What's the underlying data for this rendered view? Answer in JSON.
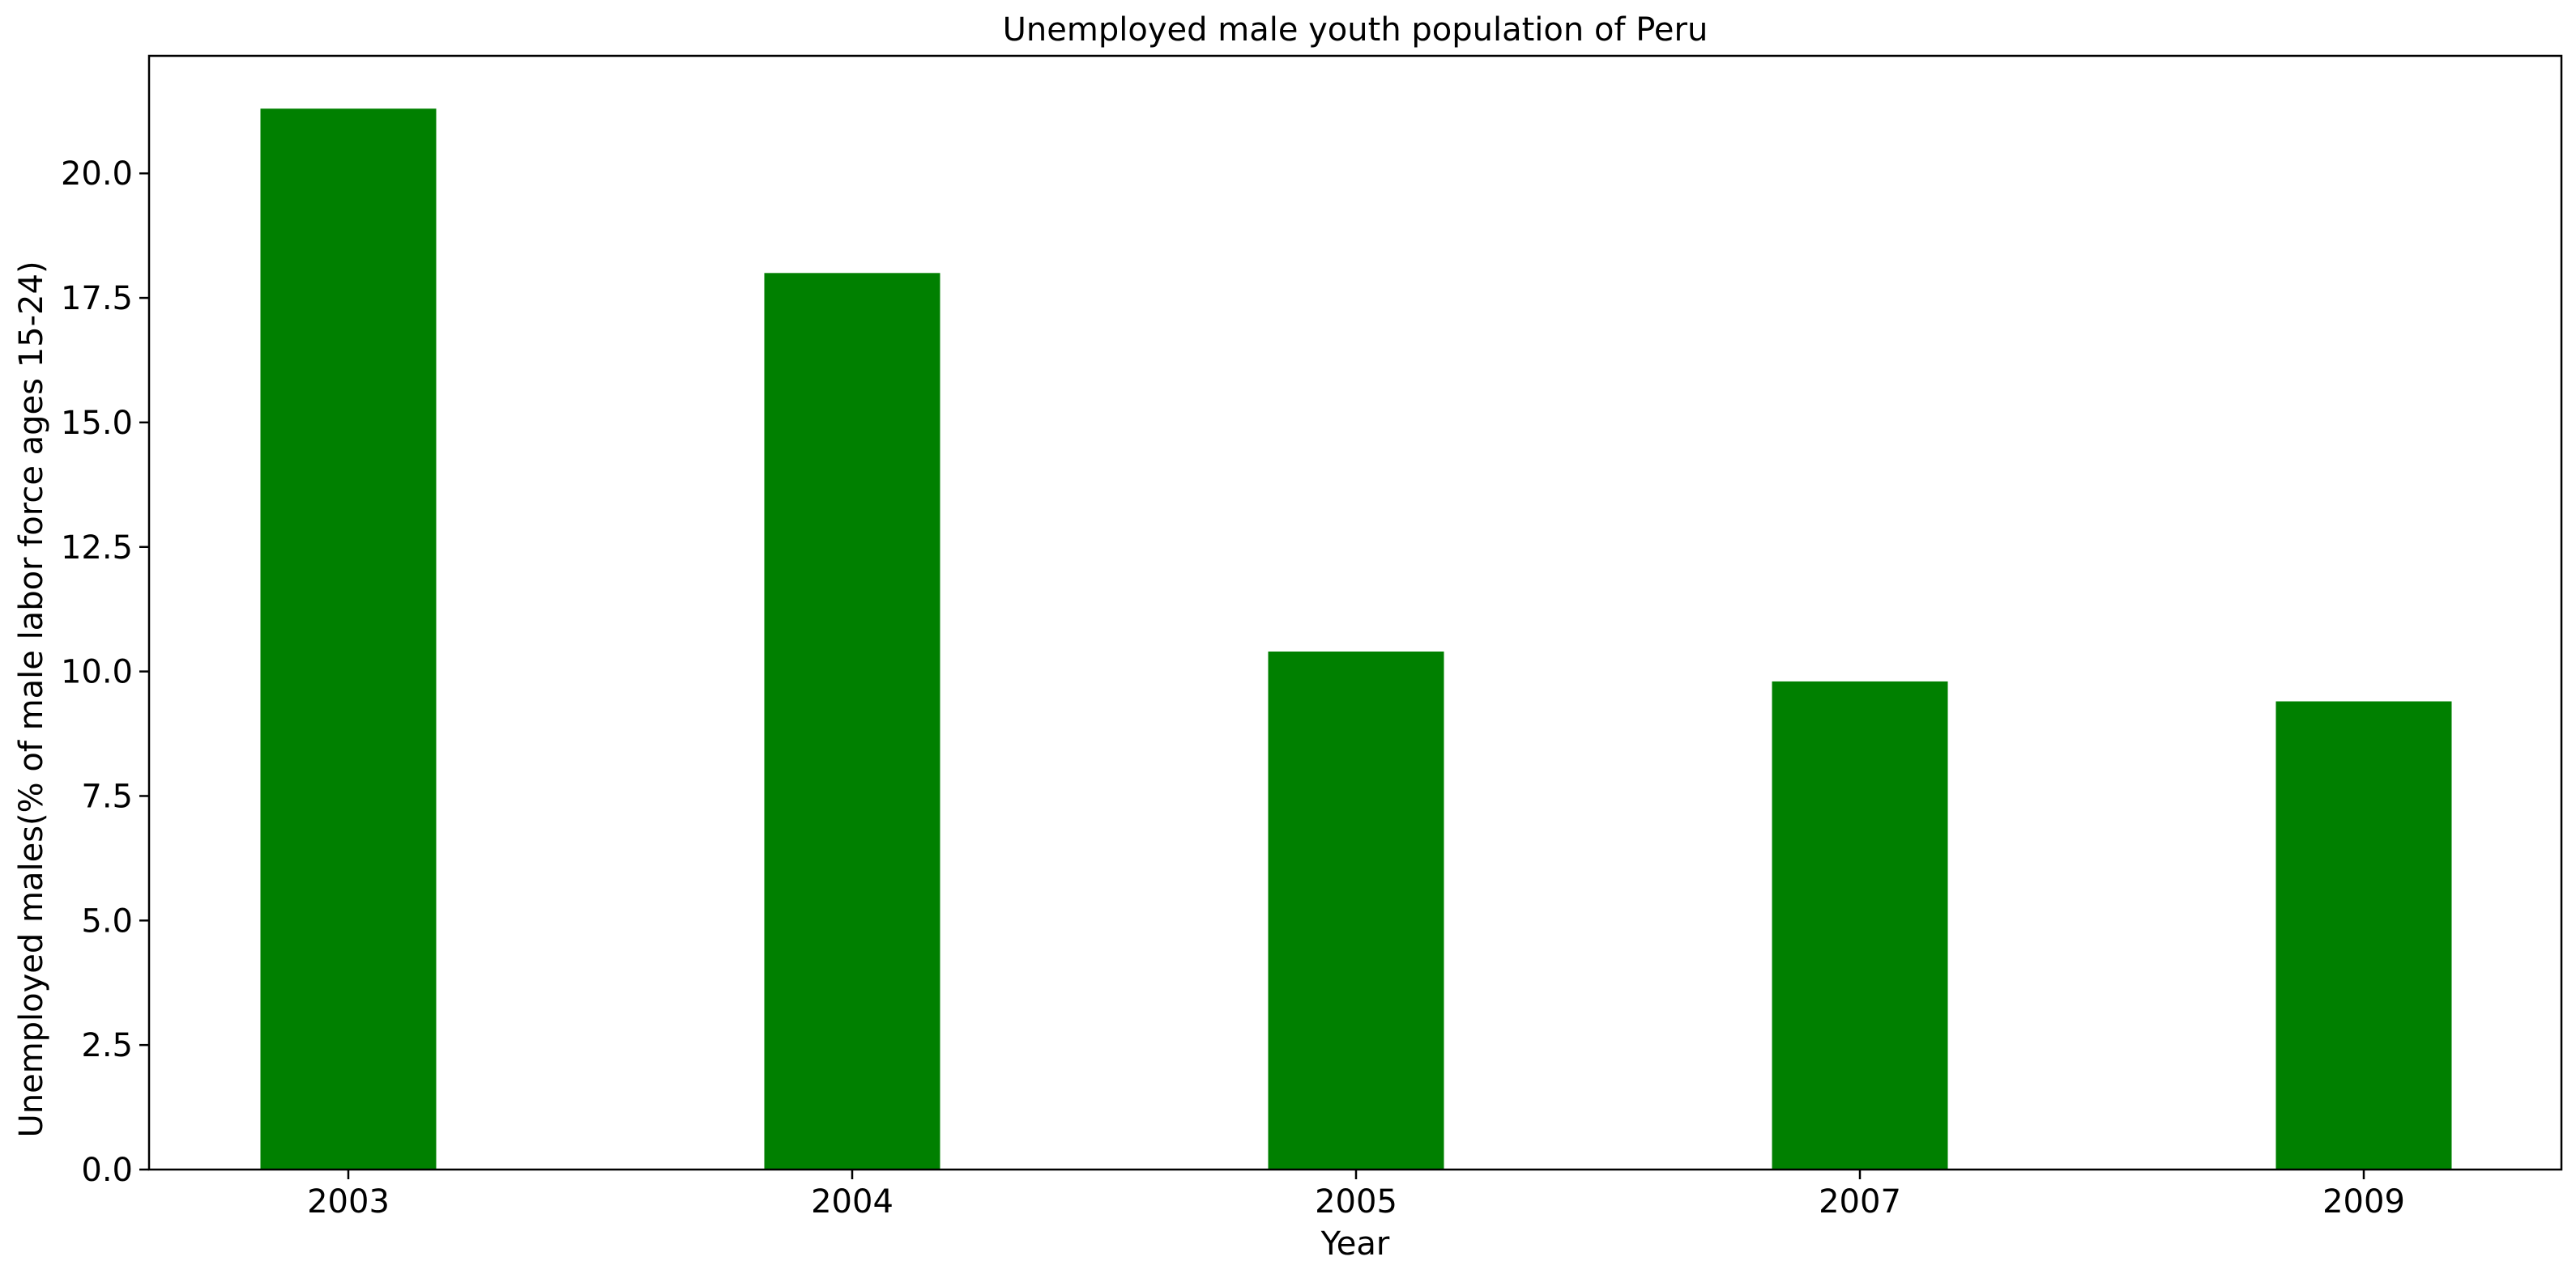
{
  "chart_data": {
    "type": "bar",
    "title": "Unemployed male youth population of Peru",
    "xlabel": "Year",
    "ylabel": "Unemployed males(% of male labor force ages 15-24)",
    "categories": [
      "2003",
      "2004",
      "2005",
      "2007",
      "2009"
    ],
    "values": [
      21.3,
      18.0,
      10.4,
      9.8,
      9.4
    ],
    "ylim": [
      0,
      22.36
    ],
    "yticks": [
      0.0,
      2.5,
      5.0,
      7.5,
      10.0,
      12.5,
      15.0,
      17.5,
      20.0
    ],
    "ytick_labels": [
      "0.0",
      "2.5",
      "5.0",
      "7.5",
      "10.0",
      "12.5",
      "15.0",
      "17.5",
      "20.0"
    ],
    "bar_color": "#008000",
    "grid": false,
    "legend": "none"
  }
}
